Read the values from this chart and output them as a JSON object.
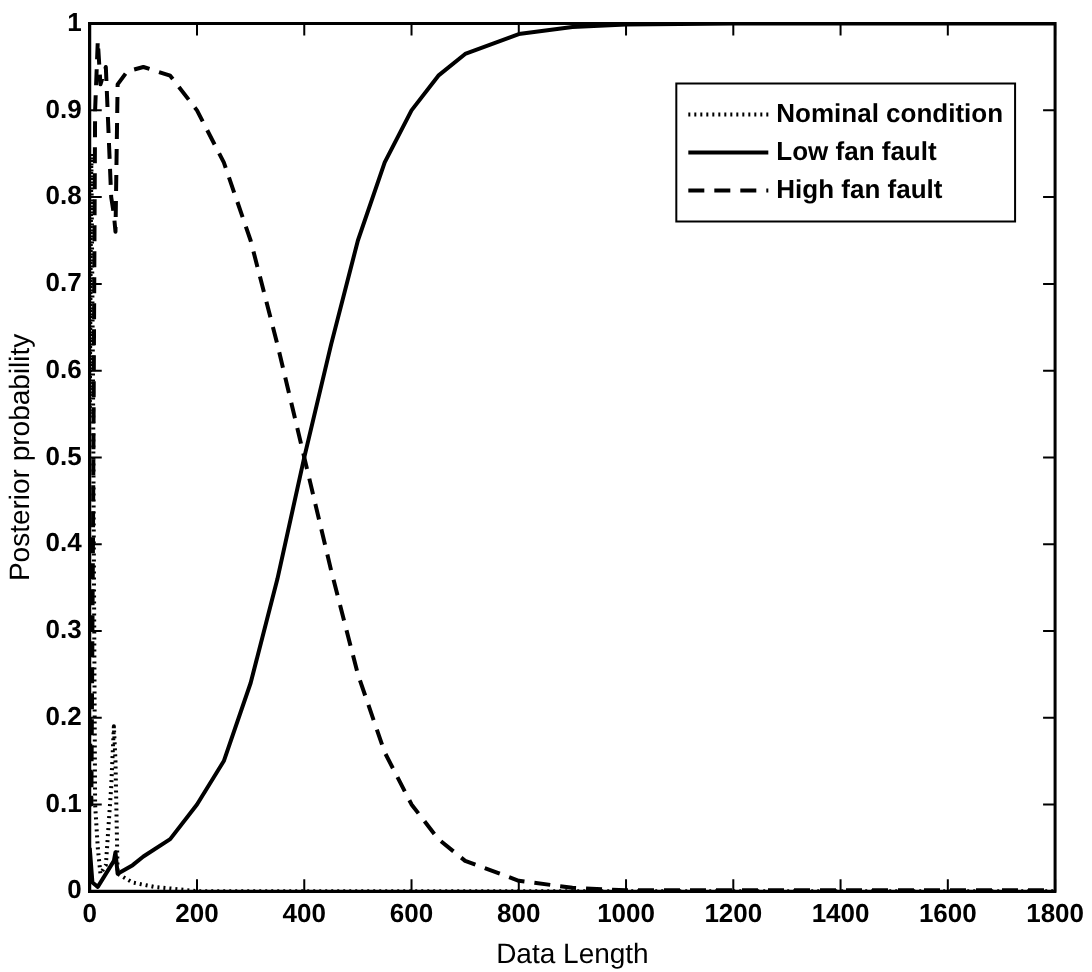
{
  "chart_data": {
    "type": "line",
    "xlabel": "Data Length",
    "ylabel": "Posterior probability",
    "xlim": [
      0,
      1800
    ],
    "xticks": [
      0,
      200,
      400,
      600,
      800,
      1000,
      1200,
      1400,
      1600,
      1800
    ],
    "ylim": [
      0,
      1
    ],
    "yticks": [
      0,
      0.1,
      0.2,
      0.3,
      0.4,
      0.5,
      0.6,
      0.7,
      0.8,
      0.9,
      1
    ],
    "grid": false,
    "legend": "top right",
    "marker": "none",
    "series": [
      {
        "name": "Nominal condition",
        "color": "#000000",
        "line_style": "dotted",
        "x": [
          0,
          3,
          6,
          10,
          15,
          20,
          30,
          40,
          45,
          48,
          52,
          80,
          120,
          200,
          1800
        ],
        "values": [
          0.55,
          0.85,
          0.6,
          0.1,
          0.05,
          0.02,
          0.03,
          0.12,
          0.19,
          0.15,
          0.02,
          0.01,
          0.005,
          0,
          0
        ]
      },
      {
        "name": "Low fan fault",
        "color": "#000000",
        "line_style": "solid",
        "x": [
          0,
          5,
          15,
          30,
          45,
          48,
          52,
          80,
          100,
          150,
          200,
          250,
          300,
          350,
          400,
          450,
          500,
          550,
          600,
          650,
          700,
          800,
          900,
          1000,
          1200,
          1800
        ],
        "values": [
          0.05,
          0.01,
          0.005,
          0.02,
          0.035,
          0.045,
          0.02,
          0.03,
          0.04,
          0.06,
          0.1,
          0.15,
          0.24,
          0.36,
          0.5,
          0.63,
          0.75,
          0.84,
          0.9,
          0.94,
          0.965,
          0.988,
          0.996,
          0.999,
          1,
          1
        ]
      },
      {
        "name": "High fan fault",
        "color": "#000000",
        "line_style": "dashed",
        "x": [
          0,
          3,
          6,
          10,
          15,
          20,
          30,
          40,
          45,
          48,
          52,
          70,
          100,
          150,
          200,
          250,
          300,
          350,
          400,
          450,
          500,
          550,
          600,
          650,
          700,
          800,
          900,
          1000,
          1100,
          1800
        ],
        "values": [
          0.2,
          0.1,
          0.4,
          0.9,
          0.98,
          0.93,
          0.95,
          0.8,
          0.78,
          0.76,
          0.93,
          0.945,
          0.95,
          0.94,
          0.9,
          0.84,
          0.75,
          0.63,
          0.5,
          0.37,
          0.25,
          0.16,
          0.1,
          0.06,
          0.035,
          0.012,
          0.004,
          0.001,
          0.001,
          0.001
        ]
      }
    ]
  }
}
